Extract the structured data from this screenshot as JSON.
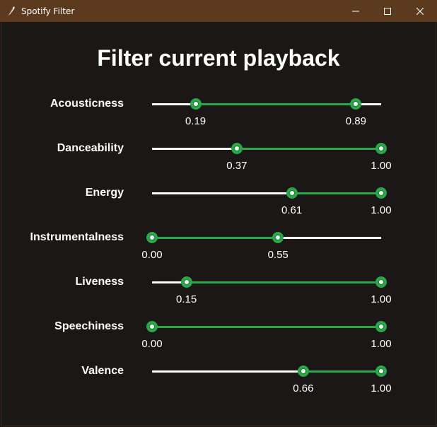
{
  "window": {
    "title": "Spotify Filter",
    "titlebar_color": "#5b3a1e",
    "icon": "feather-icon",
    "controls": [
      "minimize-icon",
      "maximize-icon",
      "close-icon"
    ]
  },
  "heading": "Filter current playback",
  "accent_color": "#29a84a",
  "sliders": [
    {
      "label": "Acousticness",
      "low": 0.19,
      "high": 0.89,
      "low_text": "0.19",
      "high_text": "0.89"
    },
    {
      "label": "Danceability",
      "low": 0.37,
      "high": 1.0,
      "low_text": "0.37",
      "high_text": "1.00"
    },
    {
      "label": "Energy",
      "low": 0.61,
      "high": 1.0,
      "low_text": "0.61",
      "high_text": "1.00"
    },
    {
      "label": "Instrumentalness",
      "low": 0.0,
      "high": 0.55,
      "low_text": "0.00",
      "high_text": "0.55"
    },
    {
      "label": "Liveness",
      "low": 0.15,
      "high": 1.0,
      "low_text": "0.15",
      "high_text": "1.00"
    },
    {
      "label": "Speechiness",
      "low": 0.0,
      "high": 1.0,
      "low_text": "0.00",
      "high_text": "1.00"
    },
    {
      "label": "Valence",
      "low": 0.66,
      "high": 1.0,
      "low_text": "0.66",
      "high_text": "1.00"
    }
  ]
}
